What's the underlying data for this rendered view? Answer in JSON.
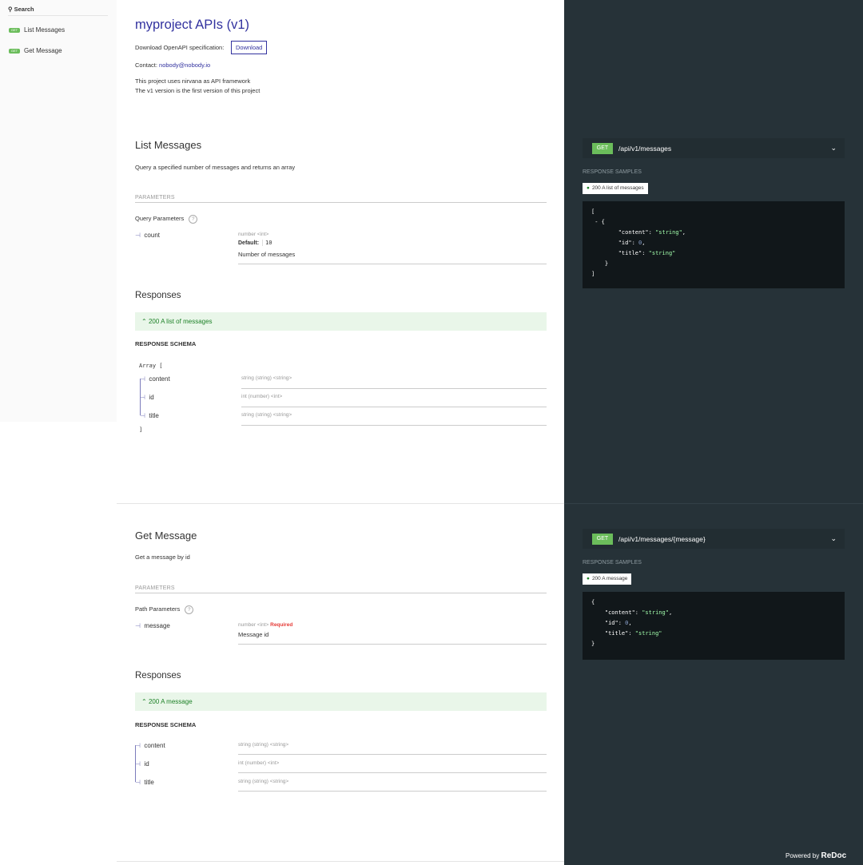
{
  "sidebar": {
    "search_placeholder": "Search",
    "items": [
      {
        "method": "GET",
        "label": "List Messages"
      },
      {
        "method": "GET",
        "label": "Get Message"
      }
    ]
  },
  "info": {
    "title": "myproject APIs (v1)",
    "download_text": "Download OpenAPI specification:",
    "download_label": "Download",
    "contact_label": "Contact:",
    "contact_email": "nobody@nobody.io",
    "description_lines": [
      "This project uses nirvana as API framework",
      "The v1 version is the first version of this project"
    ]
  },
  "ops": [
    {
      "title": "List Messages",
      "description": "Query a specified number of messages and returns an array",
      "params_header": "PARAMETERS",
      "params_group": "Query Parameters",
      "param": {
        "name": "count",
        "type": "number <int>",
        "default_label": "Default:",
        "default_value": "10",
        "description": "Number of messages"
      },
      "responses_title": "Responses",
      "response": "200 A list of messages",
      "schema_title": "RESPONSE SCHEMA",
      "array_open": "Array [",
      "array_close": "]",
      "fields": [
        {
          "name": "content",
          "type": "string (string) <string>"
        },
        {
          "name": "id",
          "type": "int (number) <int>"
        },
        {
          "name": "title",
          "type": "string (string) <string>"
        }
      ],
      "method": "GET",
      "path": "/api/v1/messages",
      "samples_title": "RESPONSE SAMPLES",
      "sample_tag": "200 A list of messages"
    },
    {
      "title": "Get Message",
      "description": "Get a message by id",
      "params_header": "PARAMETERS",
      "params_group": "Path Parameters",
      "param": {
        "name": "message",
        "type": "number <int>",
        "required": "Required",
        "description": "Message id"
      },
      "responses_title": "Responses",
      "response": "200 A message",
      "schema_title": "RESPONSE SCHEMA",
      "fields": [
        {
          "name": "content",
          "type": "string (string) <string>"
        },
        {
          "name": "id",
          "type": "int (number) <int>"
        },
        {
          "name": "title",
          "type": "string (string) <string>"
        }
      ],
      "method": "GET",
      "path": "/api/v1/messages/{message}",
      "samples_title": "RESPONSE SAMPLES",
      "sample_tag": "200 A message"
    }
  ],
  "footer": {
    "powered": "Powered by",
    "brand": "ReDoc"
  },
  "colors": {
    "accent": "#32329f",
    "get": "#6bbd5b",
    "success": "#1d8127",
    "panel": "#263238"
  }
}
